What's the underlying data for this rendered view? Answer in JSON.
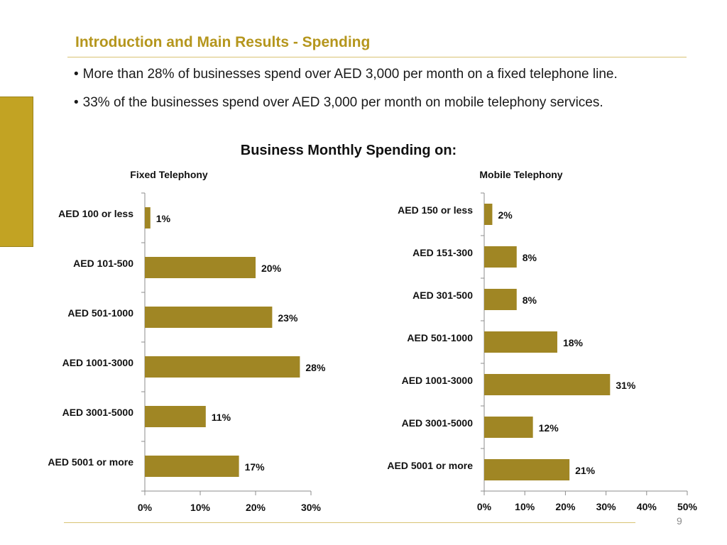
{
  "slide": {
    "title": "Introduction and Main Results - Spending",
    "bullets": [
      "More than 28% of businesses spend over AED 3,000 per month on a fixed telephone line.",
      "33% of the businesses spend over AED 3,000 per month on mobile telephony services."
    ],
    "page_number": "9",
    "accent_color": "#C2A323",
    "bar_color": "#A08624"
  },
  "figure_title": "Business Monthly Spending on:",
  "chart_data": [
    {
      "type": "bar",
      "orientation": "horizontal",
      "title": "Fixed Telephony",
      "categories": [
        "AED 100 or less",
        "AED 101-500",
        "AED 501-1000",
        "AED 1001-3000",
        "AED 3001-5000",
        "AED 5001 or more"
      ],
      "values": [
        1,
        20,
        23,
        28,
        11,
        17
      ],
      "data_labels": [
        "1%",
        "20%",
        "23%",
        "28%",
        "11%",
        "17%"
      ],
      "xlim": [
        0,
        30
      ],
      "xticks": [
        "0%",
        "10%",
        "20%",
        "30%"
      ],
      "xlabel": "",
      "ylabel": "",
      "grid": false,
      "legend": false
    },
    {
      "type": "bar",
      "orientation": "horizontal",
      "title": "Mobile Telephony",
      "categories": [
        "AED 150 or less",
        "AED 151-300",
        "AED 301-500",
        "AED 501-1000",
        "AED 1001-3000",
        "AED 3001-5000",
        "AED 5001 or more"
      ],
      "values": [
        2,
        8,
        8,
        18,
        31,
        12,
        21
      ],
      "data_labels": [
        "2%",
        "8%",
        "8%",
        "18%",
        "31%",
        "12%",
        "21%"
      ],
      "xlim": [
        0,
        50
      ],
      "xticks": [
        "0%",
        "10%",
        "20%",
        "30%",
        "40%",
        "50%"
      ],
      "xlabel": "",
      "ylabel": "",
      "grid": false,
      "legend": false
    }
  ]
}
